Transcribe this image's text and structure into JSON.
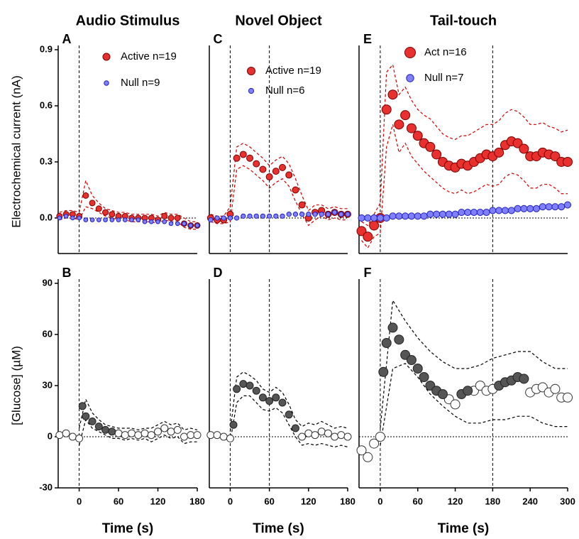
{
  "chart_data": [
    {
      "type": "scatter",
      "title": "Audio  Stimulus",
      "panel_label": "A",
      "ylabel": "Electrochemical current (nA)",
      "xlim": [
        -32,
        180
      ],
      "ylim": [
        -0.19,
        0.9
      ],
      "yticks": [
        0.9,
        0.6,
        0.3,
        {
          "value": 0,
          "label": "0.0"
        }
      ],
      "vlines": [
        0
      ],
      "hlines": [
        0
      ],
      "band": {
        "color": "#cc0000",
        "x": [
          -30,
          -20,
          -10,
          0,
          10,
          20,
          30,
          40,
          50,
          60,
          70,
          80,
          90,
          100,
          110,
          120,
          130,
          140,
          150,
          160,
          170,
          180
        ],
        "upper": [
          0.03,
          0.04,
          0.04,
          0.03,
          0.2,
          0.12,
          0.08,
          0.05,
          0.04,
          0.03,
          0.03,
          0.02,
          0.02,
          0.02,
          0.02,
          0.01,
          0.03,
          0.02,
          0.02,
          0.0,
          -0.02,
          -0.02
        ],
        "lower": [
          -0.01,
          0.0,
          0.0,
          -0.01,
          0.06,
          0.05,
          0.03,
          0.01,
          0.0,
          -0.01,
          -0.01,
          -0.02,
          -0.02,
          -0.02,
          -0.02,
          -0.03,
          -0.01,
          -0.02,
          -0.02,
          -0.05,
          -0.06,
          -0.06
        ]
      },
      "series": [
        {
          "name": "Active n=19",
          "color": "#e8312f",
          "edge": "#7a0000",
          "x": [
            -30,
            -20,
            -10,
            0,
            10,
            20,
            30,
            40,
            50,
            60,
            70,
            80,
            90,
            100,
            110,
            120,
            130,
            140,
            150,
            160,
            170,
            180
          ],
          "values": [
            0.01,
            0.02,
            0.02,
            0.01,
            0.12,
            0.08,
            0.05,
            0.03,
            0.02,
            0.01,
            0.01,
            0.0,
            0.0,
            0.0,
            0.0,
            -0.01,
            0.01,
            0.0,
            0.0,
            -0.03,
            -0.04,
            -0.04
          ]
        },
        {
          "name": "Null n=9",
          "color": "#8080ff",
          "edge": "#2020c0",
          "x": [
            -30,
            -20,
            -10,
            0,
            10,
            20,
            30,
            40,
            50,
            60,
            70,
            80,
            90,
            100,
            110,
            120,
            130,
            140,
            150,
            160,
            170,
            180
          ],
          "values": [
            0.0,
            0.01,
            0.0,
            0.0,
            -0.01,
            -0.01,
            -0.01,
            -0.01,
            -0.01,
            -0.01,
            -0.01,
            -0.01,
            -0.01,
            -0.02,
            -0.02,
            -0.02,
            -0.02,
            -0.03,
            -0.03,
            -0.03,
            -0.04,
            -0.04
          ]
        }
      ]
    },
    {
      "type": "scatter",
      "panel_label": "B",
      "ylabel": "[Glucose] (µM)",
      "xlabel": "Time (s)",
      "xlim": [
        -32,
        180
      ],
      "ylim": [
        -30,
        90
      ],
      "yticks": [
        90,
        60,
        30,
        0,
        -30
      ],
      "xticks": [
        0,
        60,
        120,
        180
      ],
      "vlines": [
        0
      ],
      "hlines": [
        0
      ],
      "band": {
        "color": "#000000",
        "x": [
          0,
          10,
          20,
          30,
          40,
          50,
          60,
          70,
          80,
          90,
          100,
          110,
          120,
          130,
          140,
          150,
          160,
          170,
          180
        ],
        "upper": [
          5,
          22,
          14,
          10,
          7,
          6,
          5,
          5,
          5,
          4,
          5,
          5,
          7,
          9,
          7,
          8,
          4,
          5,
          4
        ],
        "lower": [
          -5,
          10,
          5,
          3,
          1,
          -1,
          -1,
          -2,
          -1,
          -2,
          -1,
          -3,
          -1,
          1,
          -1,
          0,
          -4,
          -3,
          -3
        ]
      },
      "series": [
        {
          "color": "#ffffff",
          "edge": "#333333",
          "x": [
            -30,
            -20,
            -10,
            0,
            60,
            70,
            80,
            90,
            100,
            110,
            120,
            130,
            140,
            150,
            160,
            170,
            180
          ],
          "values": [
            1,
            2,
            0,
            -1,
            2,
            1,
            2,
            1,
            2,
            1,
            3,
            5,
            3,
            4,
            0,
            1,
            1
          ]
        },
        {
          "color": "#555555",
          "edge": "#222222",
          "x": [
            5,
            10,
            20,
            30,
            40,
            50
          ],
          "values": [
            18,
            12,
            9,
            6,
            4,
            3
          ]
        }
      ]
    },
    {
      "type": "scatter",
      "title": "Novel Object",
      "panel_label": "C",
      "xlim": [
        -32,
        180
      ],
      "ylim": [
        -0.19,
        0.9
      ],
      "vlines": [
        0,
        60
      ],
      "hlines": [
        0
      ],
      "band": {
        "color": "#cc0000",
        "x": [
          -30,
          -20,
          -10,
          0,
          10,
          20,
          30,
          40,
          50,
          60,
          70,
          80,
          90,
          100,
          110,
          120,
          130,
          140,
          150,
          160,
          170,
          180
        ],
        "upper": [
          0.02,
          0.01,
          0.01,
          0.06,
          0.38,
          0.4,
          0.38,
          0.35,
          0.32,
          0.28,
          0.31,
          0.33,
          0.29,
          0.21,
          0.12,
          0.04,
          0.07,
          0.07,
          0.05,
          0.06,
          0.05,
          0.05
        ],
        "lower": [
          -0.02,
          -0.03,
          -0.03,
          -0.02,
          0.26,
          0.28,
          0.26,
          0.23,
          0.2,
          0.16,
          0.19,
          0.21,
          0.17,
          0.09,
          0.02,
          -0.04,
          -0.01,
          0.01,
          -0.01,
          0.0,
          -0.01,
          -0.01
        ]
      },
      "series": [
        {
          "name": "Active n=19",
          "color": "#e8312f",
          "edge": "#7a0000",
          "x": [
            -30,
            -20,
            -10,
            0,
            10,
            20,
            30,
            40,
            50,
            60,
            70,
            80,
            90,
            100,
            110,
            120,
            130,
            140,
            150,
            160,
            170,
            180
          ],
          "values": [
            0.0,
            -0.01,
            -0.01,
            0.02,
            0.32,
            0.34,
            0.32,
            0.29,
            0.26,
            0.22,
            0.25,
            0.27,
            0.23,
            0.15,
            0.07,
            0.0,
            0.03,
            0.04,
            0.02,
            0.03,
            0.02,
            0.02
          ]
        },
        {
          "name": "Null n=6",
          "color": "#8080ff",
          "edge": "#2020c0",
          "x": [
            -30,
            -20,
            -10,
            0,
            10,
            20,
            30,
            40,
            50,
            60,
            70,
            80,
            90,
            100,
            110,
            120,
            130,
            140,
            150,
            160,
            170,
            180
          ],
          "values": [
            -0.01,
            0.0,
            0.0,
            0.0,
            0.0,
            0.01,
            0.01,
            0.01,
            0.01,
            0.01,
            0.01,
            0.01,
            0.02,
            0.02,
            0.02,
            0.02,
            0.02,
            0.02,
            0.02,
            0.03,
            0.02,
            0.02
          ]
        }
      ]
    },
    {
      "type": "scatter",
      "panel_label": "D",
      "xlabel": "Time (s)",
      "xlim": [
        -32,
        180
      ],
      "ylim": [
        -30,
        90
      ],
      "xticks": [
        0,
        60,
        120,
        180
      ],
      "vlines": [
        0,
        60
      ],
      "hlines": [
        0
      ],
      "band": {
        "color": "#000000",
        "x": [
          0,
          10,
          20,
          30,
          40,
          50,
          60,
          70,
          80,
          90,
          100,
          110,
          120,
          130,
          140,
          150,
          160,
          170,
          180
        ],
        "upper": [
          3,
          35,
          38,
          36,
          33,
          28,
          26,
          29,
          26,
          19,
          10,
          6,
          8,
          7,
          9,
          7,
          5,
          6,
          5
        ],
        "lower": [
          -3,
          20,
          24,
          24,
          20,
          16,
          15,
          17,
          14,
          7,
          0,
          -5,
          -4,
          -5,
          -4,
          -5,
          -6,
          -5,
          -6
        ]
      },
      "series": [
        {
          "color": "#ffffff",
          "edge": "#333333",
          "x": [
            -30,
            -20,
            -10,
            0,
            110,
            120,
            130,
            140,
            150,
            160,
            170,
            180
          ],
          "values": [
            1,
            1,
            0,
            -1,
            0,
            2,
            1,
            3,
            2,
            0,
            1,
            0
          ]
        },
        {
          "color": "#555555",
          "edge": "#222222",
          "x": [
            5,
            10,
            20,
            30,
            40,
            50,
            60,
            70,
            80,
            90,
            100
          ],
          "values": [
            7,
            28,
            31,
            30,
            27,
            23,
            21,
            23,
            20,
            13,
            5
          ]
        }
      ]
    },
    {
      "type": "scatter",
      "title": "Tail-touch",
      "panel_label": "E",
      "xlim": [
        -34,
        300
      ],
      "ylim": [
        -0.19,
        0.9
      ],
      "vlines": [
        0,
        180
      ],
      "hlines": [
        0
      ],
      "band": {
        "color": "#cc0000",
        "x": [
          -30,
          -20,
          -10,
          0,
          10,
          20,
          30,
          40,
          50,
          60,
          70,
          80,
          90,
          100,
          110,
          120,
          130,
          140,
          150,
          160,
          170,
          180,
          190,
          200,
          210,
          220,
          230,
          240,
          250,
          260,
          270,
          280,
          290,
          300
        ],
        "upper": [
          -0.02,
          -0.04,
          0.02,
          0.08,
          0.78,
          0.82,
          0.66,
          0.7,
          0.63,
          0.58,
          0.55,
          0.53,
          0.49,
          0.45,
          0.43,
          0.42,
          0.44,
          0.44,
          0.46,
          0.48,
          0.5,
          0.5,
          0.52,
          0.56,
          0.58,
          0.57,
          0.54,
          0.5,
          0.5,
          0.51,
          0.49,
          0.48,
          0.46,
          0.47
        ],
        "lower": [
          -0.12,
          -0.16,
          -0.1,
          -0.08,
          0.38,
          0.5,
          0.35,
          0.4,
          0.33,
          0.29,
          0.25,
          0.22,
          0.19,
          0.16,
          0.14,
          0.13,
          0.15,
          0.13,
          0.14,
          0.16,
          0.18,
          0.17,
          0.18,
          0.22,
          0.24,
          0.23,
          0.2,
          0.16,
          0.16,
          0.18,
          0.18,
          0.16,
          0.13,
          0.13
        ]
      },
      "series": [
        {
          "name": "Act n=16",
          "color": "#e8312f",
          "edge": "#7a0000",
          "x": [
            -30,
            -20,
            -10,
            0,
            10,
            20,
            30,
            40,
            50,
            60,
            70,
            80,
            90,
            100,
            110,
            120,
            130,
            140,
            150,
            160,
            170,
            180,
            190,
            200,
            210,
            220,
            230,
            240,
            250,
            260,
            270,
            280,
            290,
            300
          ],
          "values": [
            -0.07,
            -0.1,
            -0.04,
            0.0,
            0.58,
            0.66,
            0.5,
            0.55,
            0.48,
            0.44,
            0.4,
            0.38,
            0.34,
            0.3,
            0.28,
            0.27,
            0.29,
            0.28,
            0.3,
            0.32,
            0.34,
            0.33,
            0.35,
            0.39,
            0.41,
            0.4,
            0.37,
            0.33,
            0.33,
            0.35,
            0.34,
            0.33,
            0.3,
            0.3
          ]
        },
        {
          "name": "Null n=7",
          "color": "#8080ff",
          "edge": "#2020c0",
          "x": [
            -30,
            -20,
            -10,
            0,
            10,
            20,
            30,
            40,
            50,
            60,
            70,
            80,
            90,
            100,
            110,
            120,
            130,
            140,
            150,
            160,
            170,
            180,
            190,
            200,
            210,
            220,
            230,
            240,
            250,
            260,
            270,
            280,
            290,
            300
          ],
          "values": [
            0.0,
            0.0,
            0.0,
            0.0,
            0.0,
            0.01,
            0.01,
            0.01,
            0.01,
            0.01,
            0.01,
            0.02,
            0.02,
            0.02,
            0.02,
            0.02,
            0.03,
            0.03,
            0.03,
            0.03,
            0.03,
            0.04,
            0.04,
            0.04,
            0.04,
            0.05,
            0.05,
            0.05,
            0.05,
            0.06,
            0.06,
            0.06,
            0.06,
            0.07
          ]
        }
      ]
    },
    {
      "type": "scatter",
      "panel_label": "F",
      "xlabel": "Time (s)",
      "xlim": [
        -34,
        300
      ],
      "ylim": [
        -30,
        90
      ],
      "xticks": [
        0,
        60,
        120,
        180,
        240,
        300
      ],
      "vlines": [
        0,
        180
      ],
      "hlines": [
        0
      ],
      "band": {
        "color": "#000000",
        "x": [
          0,
          20,
          40,
          60,
          80,
          100,
          120,
          140,
          160,
          180,
          200,
          220,
          240,
          260,
          280,
          300
        ],
        "upper": [
          5,
          80,
          68,
          58,
          50,
          44,
          40,
          40,
          42,
          46,
          48,
          50,
          50,
          44,
          40,
          40
        ],
        "lower": [
          -5,
          40,
          43,
          35,
          25,
          18,
          12,
          8,
          8,
          10,
          10,
          12,
          12,
          8,
          6,
          6
        ]
      },
      "series": [
        {
          "color": "#ffffff",
          "edge": "#333333",
          "x": [
            -30,
            -20,
            -10,
            0,
            110,
            120,
            150,
            160,
            170,
            180,
            240,
            250,
            260,
            270,
            280,
            290,
            300
          ],
          "values": [
            -8,
            -12,
            -4,
            0,
            22,
            19,
            27,
            30,
            27,
            28,
            26,
            28,
            29,
            26,
            28,
            23,
            23
          ]
        },
        {
          "color": "#555555",
          "edge": "#222222",
          "x": [
            5,
            10,
            20,
            30,
            40,
            50,
            60,
            70,
            80,
            90,
            100,
            130,
            140,
            190,
            200,
            210,
            220,
            230
          ],
          "values": [
            38,
            55,
            64,
            57,
            48,
            45,
            40,
            35,
            30,
            27,
            25,
            25,
            27,
            30,
            32,
            33,
            35,
            34
          ]
        }
      ]
    }
  ]
}
